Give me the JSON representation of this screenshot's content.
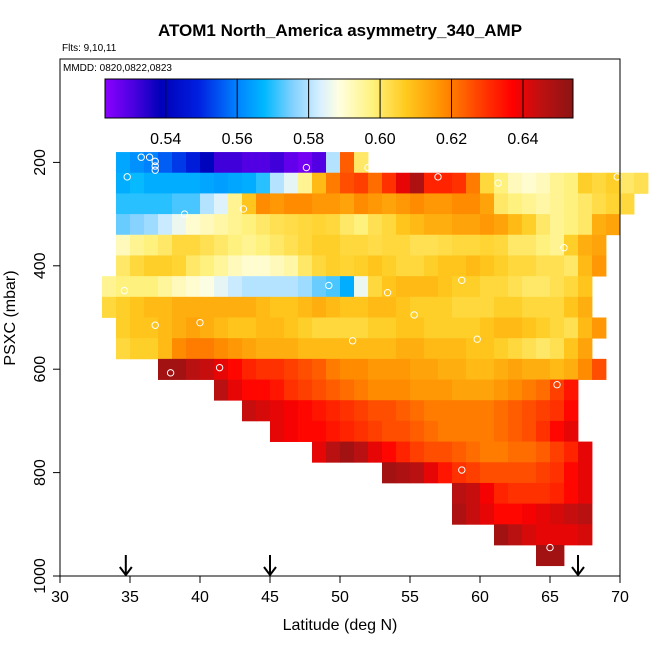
{
  "chart_data": {
    "type": "heatmap",
    "title": "ATOM1 North_America asymmetry_340_AMP",
    "flights_label": "Flts: 9,10,11",
    "dates_label": "MMDD: 0820,0822,0823",
    "xlabel": "Latitude (deg N)",
    "ylabel": "PSXC (mbar)",
    "xlim": [
      30,
      70
    ],
    "ylim": [
      1000,
      0
    ],
    "x_ticks": [
      30,
      35,
      40,
      45,
      50,
      55,
      60,
      65,
      70
    ],
    "y_ticks": [
      200,
      400,
      600,
      800,
      1000
    ],
    "colorbar": {
      "min": 0.523,
      "max": 0.654,
      "ticks": [
        0.54,
        0.56,
        0.58,
        0.6,
        0.62,
        0.64
      ],
      "tick_labels": [
        "0.54",
        "0.56",
        "0.58",
        "0.60",
        "0.62",
        "0.64"
      ]
    },
    "arrows_latitude": [
      34.7,
      45.0,
      67.0
    ],
    "cell_width_deg": 1,
    "cell_height_mbar": 40,
    "rows": [
      {
        "p": 200,
        "lat_start": 34,
        "values": [
          0.565,
          0.562,
          0.56,
          0.556,
          0.552,
          0.548,
          0.54,
          0.532,
          0.532,
          0.53,
          0.53,
          0.532,
          0.528,
          0.526,
          0.53,
          0.58,
          0.624,
          0.6
        ]
      },
      {
        "p": 240,
        "lat_start": 34,
        "values": [
          0.566,
          0.568,
          0.566,
          0.566,
          0.566,
          0.566,
          0.565,
          0.564,
          0.565,
          0.566,
          0.57,
          0.58,
          0.585,
          0.596,
          0.61,
          0.62,
          0.626,
          0.628,
          0.622,
          0.63,
          0.64,
          0.648,
          0.632,
          0.632,
          0.63,
          0.62,
          0.604,
          0.598,
          0.592,
          0.59,
          0.592,
          0.596,
          0.598,
          0.606,
          0.604,
          0.606,
          0.6,
          0.602
        ]
      },
      {
        "p": 280,
        "lat_start": 34,
        "values": [
          0.57,
          0.57,
          0.57,
          0.57,
          0.572,
          0.572,
          0.58,
          0.584,
          0.596,
          0.608,
          0.618,
          0.616,
          0.618,
          0.618,
          0.616,
          0.616,
          0.614,
          0.618,
          0.616,
          0.614,
          0.616,
          0.618,
          0.616,
          0.616,
          0.618,
          0.618,
          0.614,
          0.6,
          0.598,
          0.596,
          0.594,
          0.596,
          0.598,
          0.6,
          0.603,
          0.605,
          0.604
        ]
      },
      {
        "p": 320,
        "lat_start": 34,
        "values": [
          0.574,
          0.576,
          0.578,
          0.582,
          0.586,
          0.59,
          0.592,
          0.594,
          0.596,
          0.598,
          0.6,
          0.602,
          0.603,
          0.604,
          0.605,
          0.604,
          0.6,
          0.598,
          0.602,
          0.604,
          0.608,
          0.61,
          0.612,
          0.612,
          0.614,
          0.614,
          0.616,
          0.614,
          0.61,
          0.606,
          0.6,
          0.596,
          0.598,
          0.6,
          0.612,
          0.614
        ]
      },
      {
        "p": 360,
        "lat_start": 34,
        "values": [
          0.592,
          0.596,
          0.598,
          0.6,
          0.604,
          0.604,
          0.602,
          0.6,
          0.598,
          0.596,
          0.598,
          0.6,
          0.602,
          0.604,
          0.606,
          0.606,
          0.604,
          0.604,
          0.603,
          0.604,
          0.604,
          0.602,
          0.602,
          0.603,
          0.604,
          0.604,
          0.605,
          0.604,
          0.6,
          0.6,
          0.598,
          0.596,
          0.606,
          0.612,
          0.614
        ]
      },
      {
        "p": 400,
        "lat_start": 34,
        "values": [
          0.6,
          0.604,
          0.606,
          0.606,
          0.605,
          0.6,
          0.598,
          0.595,
          0.592,
          0.59,
          0.59,
          0.592,
          0.594,
          0.6,
          0.604,
          0.606,
          0.605,
          0.606,
          0.608,
          0.606,
          0.604,
          0.604,
          0.606,
          0.608,
          0.608,
          0.61,
          0.608,
          0.606,
          0.604,
          0.604,
          0.602,
          0.602,
          0.6,
          0.61,
          0.616
        ]
      },
      {
        "p": 440,
        "lat_start": 33,
        "values": [
          0.596,
          0.598,
          0.598,
          0.598,
          0.595,
          0.592,
          0.59,
          0.588,
          0.585,
          0.582,
          0.58,
          0.58,
          0.58,
          0.58,
          0.578,
          0.574,
          0.572,
          0.566,
          0.586,
          0.604,
          0.608,
          0.61,
          0.61,
          0.61,
          0.608,
          0.606,
          0.606,
          0.604,
          0.604,
          0.602,
          0.6,
          0.6,
          0.602,
          0.604,
          0.608
        ]
      },
      {
        "p": 480,
        "lat_start": 33,
        "values": [
          0.604,
          0.606,
          0.608,
          0.61,
          0.61,
          0.612,
          0.612,
          0.612,
          0.612,
          0.612,
          0.612,
          0.61,
          0.608,
          0.608,
          0.61,
          0.612,
          0.61,
          0.608,
          0.608,
          0.61,
          0.61,
          0.608,
          0.606,
          0.606,
          0.606,
          0.604,
          0.604,
          0.604,
          0.606,
          0.606,
          0.604,
          0.604,
          0.604,
          0.608,
          0.612
        ]
      },
      {
        "p": 520,
        "lat_start": 34,
        "values": [
          0.606,
          0.608,
          0.608,
          0.61,
          0.612,
          0.614,
          0.612,
          0.61,
          0.608,
          0.608,
          0.61,
          0.61,
          0.608,
          0.606,
          0.604,
          0.604,
          0.604,
          0.604,
          0.606,
          0.606,
          0.608,
          0.608,
          0.606,
          0.606,
          0.606,
          0.606,
          0.608,
          0.61,
          0.61,
          0.608,
          0.606,
          0.604,
          0.602,
          0.61,
          0.616
        ]
      },
      {
        "p": 560,
        "lat_start": 34,
        "values": [
          0.604,
          0.606,
          0.606,
          0.61,
          0.618,
          0.62,
          0.62,
          0.618,
          0.616,
          0.614,
          0.612,
          0.612,
          0.612,
          0.61,
          0.61,
          0.61,
          0.61,
          0.61,
          0.61,
          0.61,
          0.612,
          0.612,
          0.61,
          0.61,
          0.61,
          0.608,
          0.608,
          0.606,
          0.604,
          0.602,
          0.6,
          0.602,
          0.608,
          0.614
        ]
      },
      {
        "p": 600,
        "lat_start": 37,
        "values": [
          0.65,
          0.65,
          0.646,
          0.644,
          0.64,
          0.636,
          0.632,
          0.63,
          0.63,
          0.628,
          0.626,
          0.624,
          0.62,
          0.618,
          0.618,
          0.616,
          0.616,
          0.616,
          0.614,
          0.614,
          0.612,
          0.612,
          0.61,
          0.61,
          0.612,
          0.614,
          0.612,
          0.612,
          0.61,
          0.612,
          0.618,
          0.626
        ]
      },
      {
        "p": 640,
        "lat_start": 41,
        "values": [
          0.646,
          0.64,
          0.636,
          0.636,
          0.634,
          0.63,
          0.628,
          0.626,
          0.624,
          0.622,
          0.62,
          0.618,
          0.618,
          0.618,
          0.616,
          0.616,
          0.616,
          0.614,
          0.614,
          0.614,
          0.616,
          0.618,
          0.62,
          0.622,
          0.628,
          0.634
        ]
      },
      {
        "p": 680,
        "lat_start": 43,
        "values": [
          0.644,
          0.642,
          0.64,
          0.638,
          0.636,
          0.634,
          0.632,
          0.63,
          0.628,
          0.626,
          0.626,
          0.624,
          0.622,
          0.62,
          0.62,
          0.62,
          0.62,
          0.62,
          0.622,
          0.624,
          0.626,
          0.628,
          0.63,
          0.636
        ]
      },
      {
        "p": 720,
        "lat_start": 45,
        "values": [
          0.64,
          0.638,
          0.636,
          0.636,
          0.634,
          0.632,
          0.63,
          0.628,
          0.626,
          0.626,
          0.624,
          0.622,
          0.62,
          0.62,
          0.62,
          0.62,
          0.622,
          0.624,
          0.626,
          0.63,
          0.636,
          0.64
        ]
      },
      {
        "p": 760,
        "lat_start": 48,
        "values": [
          0.64,
          0.646,
          0.65,
          0.646,
          0.64,
          0.636,
          0.632,
          0.628,
          0.626,
          0.626,
          0.624,
          0.622,
          0.62,
          0.62,
          0.622,
          0.622,
          0.624,
          0.628,
          0.632,
          0.64
        ]
      },
      {
        "p": 800,
        "lat_start": 53,
        "values": [
          0.65,
          0.648,
          0.646,
          0.64,
          0.634,
          0.63,
          0.628,
          0.626,
          0.626,
          0.626,
          0.626,
          0.628,
          0.63,
          0.636,
          0.64
        ]
      },
      {
        "p": 840,
        "lat_start": 58,
        "values": [
          0.646,
          0.644,
          0.638,
          0.632,
          0.63,
          0.63,
          0.63,
          0.632,
          0.636,
          0.64
        ]
      },
      {
        "p": 880,
        "lat_start": 58,
        "values": [
          0.648,
          0.644,
          0.64,
          0.636,
          0.636,
          0.638,
          0.64,
          0.642,
          0.644,
          0.646
        ]
      },
      {
        "p": 920,
        "lat_start": 61,
        "values": [
          0.65,
          0.646,
          0.642,
          0.64,
          0.64,
          0.64,
          0.642
        ]
      },
      {
        "p": 960,
        "lat_start": 64,
        "values": [
          0.65,
          0.65
        ]
      }
    ],
    "points": [
      {
        "lat": 35.8,
        "p": 190
      },
      {
        "lat": 36.4,
        "p": 190
      },
      {
        "lat": 36.8,
        "p": 198
      },
      {
        "lat": 36.8,
        "p": 207
      },
      {
        "lat": 36.8,
        "p": 215
      },
      {
        "lat": 34.8,
        "p": 228
      },
      {
        "lat": 47.6,
        "p": 210
      },
      {
        "lat": 52.0,
        "p": 210
      },
      {
        "lat": 57.0,
        "p": 228
      },
      {
        "lat": 61.3,
        "p": 240
      },
      {
        "lat": 69.8,
        "p": 228
      },
      {
        "lat": 38.9,
        "p": 300
      },
      {
        "lat": 43.1,
        "p": 290
      },
      {
        "lat": 66.0,
        "p": 365
      },
      {
        "lat": 49.2,
        "p": 438
      },
      {
        "lat": 53.4,
        "p": 452
      },
      {
        "lat": 58.7,
        "p": 428
      },
      {
        "lat": 34.6,
        "p": 448
      },
      {
        "lat": 55.3,
        "p": 495
      },
      {
        "lat": 40.0,
        "p": 510
      },
      {
        "lat": 36.8,
        "p": 515
      },
      {
        "lat": 50.9,
        "p": 545
      },
      {
        "lat": 59.8,
        "p": 542
      },
      {
        "lat": 37.9,
        "p": 607
      },
      {
        "lat": 41.4,
        "p": 597
      },
      {
        "lat": 65.5,
        "p": 630
      },
      {
        "lat": 58.7,
        "p": 795
      },
      {
        "lat": 65.0,
        "p": 945
      }
    ]
  }
}
